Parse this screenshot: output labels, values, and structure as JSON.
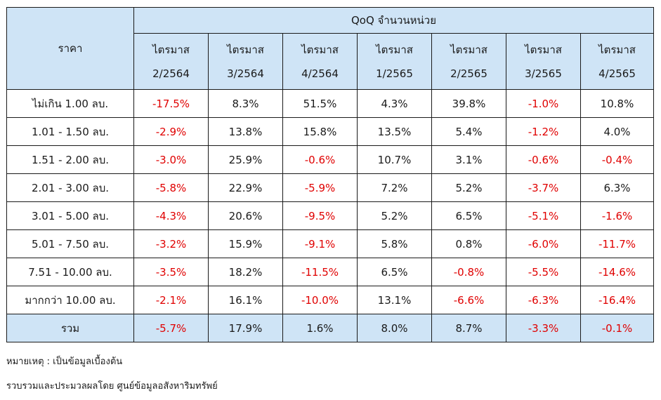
{
  "table": {
    "price_header": "ราคา",
    "group_header": "QoQ จำนวนหน่วย",
    "quarters": [
      {
        "line1": "ไตรมาส",
        "line2": "2/2564"
      },
      {
        "line1": "ไตรมาส",
        "line2": "3/2564"
      },
      {
        "line1": "ไตรมาส",
        "line2": "4/2564"
      },
      {
        "line1": "ไตรมาส",
        "line2": "1/2565"
      },
      {
        "line1": "ไตรมาส",
        "line2": "2/2565"
      },
      {
        "line1": "ไตรมาส",
        "line2": "3/2565"
      },
      {
        "line1": "ไตรมาส",
        "line2": "4/2565"
      }
    ],
    "rows": [
      {
        "label": "ไม่เกิน 1.00 ลบ.",
        "values": [
          "-17.5%",
          "8.3%",
          "51.5%",
          "4.3%",
          "39.8%",
          "-1.0%",
          "10.8%"
        ]
      },
      {
        "label": "1.01 - 1.50 ลบ.",
        "values": [
          "-2.9%",
          "13.8%",
          "15.8%",
          "13.5%",
          "5.4%",
          "-1.2%",
          "4.0%"
        ]
      },
      {
        "label": "1.51 - 2.00 ลบ.",
        "values": [
          "-3.0%",
          "25.9%",
          "-0.6%",
          "10.7%",
          "3.1%",
          "-0.6%",
          "-0.4%"
        ]
      },
      {
        "label": "2.01 - 3.00 ลบ.",
        "values": [
          "-5.8%",
          "22.9%",
          "-5.9%",
          "7.2%",
          "5.2%",
          "-3.7%",
          "6.3%"
        ]
      },
      {
        "label": "3.01 - 5.00 ลบ.",
        "values": [
          "-4.3%",
          "20.6%",
          "-9.5%",
          "5.2%",
          "6.5%",
          "-5.1%",
          "-1.6%"
        ]
      },
      {
        "label": "5.01 - 7.50 ลบ.",
        "values": [
          "-3.2%",
          "15.9%",
          "-9.1%",
          "5.8%",
          "0.8%",
          "-6.0%",
          "-11.7%"
        ]
      },
      {
        "label": "7.51 - 10.00 ลบ.",
        "values": [
          "-3.5%",
          "18.2%",
          "-11.5%",
          "6.5%",
          "-0.8%",
          "-5.5%",
          "-14.6%"
        ]
      },
      {
        "label": "มากกว่า 10.00 ลบ.",
        "values": [
          "-2.1%",
          "16.1%",
          "-10.0%",
          "13.1%",
          "-6.6%",
          "-6.3%",
          "-16.4%"
        ]
      }
    ],
    "total": {
      "label": "รวม",
      "values": [
        "-5.7%",
        "17.9%",
        "1.6%",
        "8.0%",
        "8.7%",
        "-3.3%",
        "-0.1%"
      ]
    }
  },
  "colors": {
    "header_bg": "#cfe4f6",
    "negative": "#e00000"
  },
  "notes": {
    "note1": "หมายเหตุ : เป็นข้อมูลเบื้องต้น",
    "note2": "รวบรวมและประมวลผลโดย ศูนย์ข้อมูลอสังหาริมทรัพย์"
  }
}
